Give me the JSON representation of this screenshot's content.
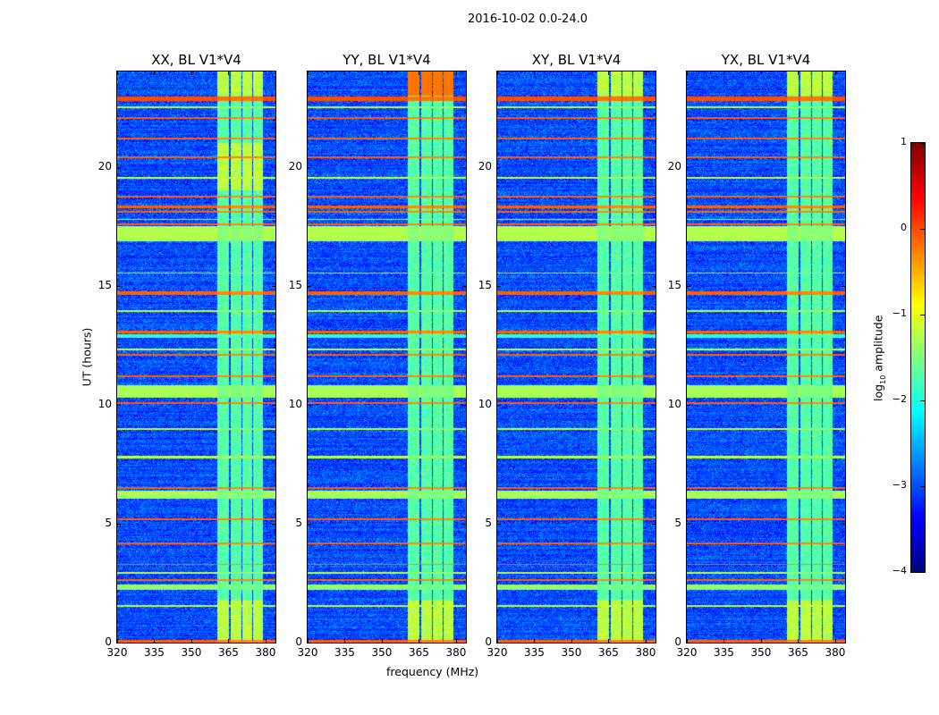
{
  "chart_data": {
    "type": "heatmap",
    "title": "2016-10-02 0.0-24.0",
    "xlabel": "frequency (MHz)",
    "ylabel": "UT (hours)",
    "xlim": [
      320,
      384
    ],
    "ylim": [
      0,
      24
    ],
    "xticks": [
      "320",
      "335",
      "350",
      "365",
      "380"
    ],
    "yticks": [
      "0",
      "5",
      "10",
      "15",
      "20"
    ],
    "panels": [
      {
        "title": "XX, BL V1*V4"
      },
      {
        "title": "YY, BL V1*V4"
      },
      {
        "title": "XY, BL V1*V4"
      },
      {
        "title": "YX, BL V1*V4"
      }
    ],
    "colorbar": {
      "label_main": "log",
      "label_sub": "10",
      "label_rest": " amplitude",
      "range": [
        -4,
        1
      ],
      "ticks": [
        "1",
        "0",
        "−1",
        "−2",
        "−3",
        "−4"
      ],
      "colormap": "jet"
    },
    "background_level": -3.0,
    "rfi_freq_bands_mhz": [
      [
        360.5,
        365.1
      ],
      [
        365.8,
        370.1
      ],
      [
        370.6,
        374.6
      ],
      [
        375.1,
        379.1
      ]
    ],
    "rfi_band_level": -1.7,
    "rfi_time_lines": [
      {
        "t": [
          22.75,
          22.95
        ],
        "v": 0.0
      },
      {
        "t": [
          22.45,
          22.55
        ],
        "v": -1.2
      },
      {
        "t": [
          22.0,
          22.08
        ],
        "v": -0.1
      },
      {
        "t": [
          21.15,
          21.23
        ],
        "v": -0.1
      },
      {
        "t": [
          20.35,
          20.43
        ],
        "v": -0.1
      },
      {
        "t": [
          19.5,
          19.58
        ],
        "v": -1.1
      },
      {
        "t": [
          18.7,
          18.78
        ],
        "v": -0.1
      },
      {
        "t": [
          18.25,
          18.35
        ],
        "v": -0.1
      },
      {
        "t": [
          18.05,
          18.13
        ],
        "v": -0.1
      },
      {
        "t": [
          17.75,
          17.82
        ],
        "v": -1.2
      },
      {
        "t": [
          17.55,
          17.62
        ],
        "v": -0.1
      },
      {
        "t": [
          16.85,
          17.5
        ],
        "v": -1.25
      },
      {
        "t": [
          15.5,
          15.56
        ],
        "v": -1.2
      },
      {
        "t": [
          14.6,
          14.75
        ],
        "v": -0.1
      },
      {
        "t": [
          13.9,
          13.96
        ],
        "v": -1.2
      },
      {
        "t": [
          13.0,
          13.1
        ],
        "v": -0.1
      },
      {
        "t": [
          12.8,
          12.95
        ],
        "v": -1.9
      },
      {
        "t": [
          12.3,
          12.36
        ],
        "v": -1.2
      },
      {
        "t": [
          12.05,
          12.12
        ],
        "v": -0.1
      },
      {
        "t": [
          11.15,
          11.23
        ],
        "v": -0.1
      },
      {
        "t": [
          10.3,
          10.8
        ],
        "v": -1.3
      },
      {
        "t": [
          10.03,
          10.1
        ],
        "v": -0.1
      },
      {
        "t": [
          8.95,
          9.02
        ],
        "v": -1.2
      },
      {
        "t": [
          7.75,
          7.85
        ],
        "v": -1.2
      },
      {
        "t": [
          6.45,
          6.55
        ],
        "v": -0.1
      },
      {
        "t": [
          6.05,
          6.4
        ],
        "v": -1.3
      },
      {
        "t": [
          5.15,
          5.23
        ],
        "v": -0.1
      },
      {
        "t": [
          4.15,
          4.22
        ],
        "v": -0.1
      },
      {
        "t": [
          3.25,
          3.32
        ],
        "v": -0.1
      },
      {
        "t": [
          2.9,
          2.96
        ],
        "v": -1.2
      },
      {
        "t": [
          2.6,
          2.66
        ],
        "v": -0.1
      },
      {
        "t": [
          2.2,
          2.45
        ],
        "v": -1.4
      },
      {
        "t": [
          1.5,
          1.56
        ],
        "v": -1.2
      },
      {
        "t": [
          0.0,
          0.1
        ],
        "v": -0.1
      }
    ]
  }
}
